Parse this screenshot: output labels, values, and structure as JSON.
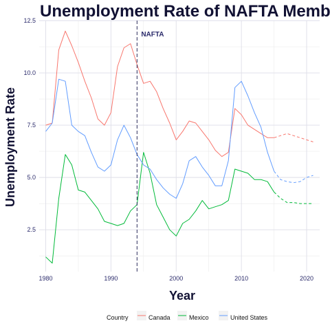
{
  "chart_data": {
    "type": "line",
    "title": "Unemployment Rate of NAFTA Memb",
    "xlabel": "Year",
    "ylabel": "Unemployment Rate",
    "xlim": [
      1979,
      2022
    ],
    "ylim": [
      0.5,
      12.5
    ],
    "x_ticks": [
      1980,
      1990,
      2000,
      2010,
      2020
    ],
    "y_ticks": [
      2.5,
      5.0,
      7.5,
      10.0,
      12.5
    ],
    "y_tick_labels": [
      "2.5",
      "5.0",
      "7.5",
      "10.0",
      "12.5"
    ],
    "grid": true,
    "legend": {
      "title": "Country",
      "position": "bottom"
    },
    "annotation": {
      "label": "NAFTA",
      "x": 1994
    },
    "forecast_start": 2015,
    "x": [
      1980,
      1981,
      1982,
      1983,
      1984,
      1985,
      1986,
      1987,
      1988,
      1989,
      1990,
      1991,
      1992,
      1993,
      1994,
      1995,
      1996,
      1997,
      1998,
      1999,
      2000,
      2001,
      2002,
      2003,
      2004,
      2005,
      2006,
      2007,
      2008,
      2009,
      2010,
      2011,
      2012,
      2013,
      2014,
      2015,
      2016,
      2017,
      2018,
      2019,
      2020,
      2021
    ],
    "series": [
      {
        "name": "Canada",
        "color": "#F8766D",
        "values": [
          7.5,
          7.6,
          11.1,
          12.0,
          11.3,
          10.5,
          9.6,
          8.8,
          7.8,
          7.5,
          8.1,
          10.3,
          11.2,
          11.4,
          10.4,
          9.5,
          9.6,
          9.1,
          8.3,
          7.6,
          6.8,
          7.2,
          7.7,
          7.6,
          7.2,
          6.8,
          6.3,
          6.0,
          6.2,
          8.3,
          8.0,
          7.5,
          7.3,
          7.1,
          6.9,
          6.9,
          7.0,
          7.1,
          7.0,
          6.9,
          6.8,
          6.7
        ]
      },
      {
        "name": "Mexico",
        "color": "#00BA38",
        "values": [
          1.2,
          0.9,
          4.0,
          6.1,
          5.6,
          4.4,
          4.3,
          3.9,
          3.5,
          2.9,
          2.8,
          2.7,
          2.8,
          3.4,
          3.7,
          6.2,
          5.2,
          3.7,
          3.1,
          2.5,
          2.2,
          2.8,
          3.0,
          3.4,
          3.9,
          3.5,
          3.6,
          3.7,
          3.9,
          5.4,
          5.3,
          5.2,
          4.9,
          4.9,
          4.8,
          4.3,
          4.0,
          3.8,
          3.8,
          3.75,
          3.75,
          3.75
        ]
      },
      {
        "name": "United States",
        "color": "#619CFF",
        "values": [
          7.2,
          7.6,
          9.7,
          9.6,
          7.5,
          7.2,
          7.0,
          6.2,
          5.5,
          5.3,
          5.6,
          6.8,
          7.5,
          6.9,
          6.1,
          5.6,
          5.4,
          4.9,
          4.5,
          4.2,
          4.0,
          4.7,
          5.8,
          6.0,
          5.5,
          5.1,
          4.6,
          4.6,
          5.8,
          9.3,
          9.6,
          8.9,
          8.1,
          7.4,
          6.2,
          5.3,
          4.9,
          4.8,
          4.75,
          4.8,
          5.0,
          5.1
        ]
      }
    ]
  }
}
